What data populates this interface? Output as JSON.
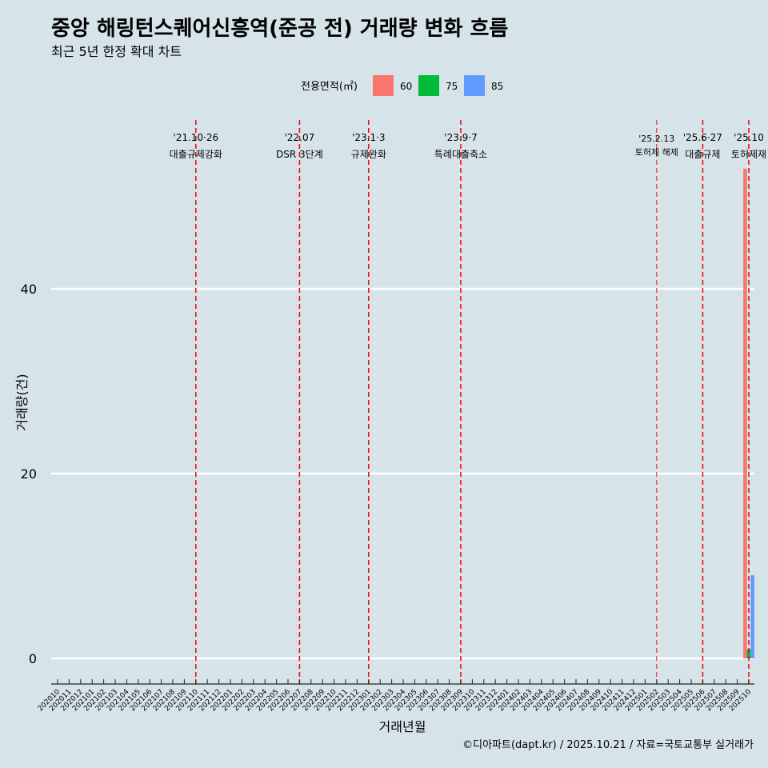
{
  "chart_data": {
    "type": "bar",
    "title": "중앙 해링턴스퀘어신흥역(준공 전) 거래량 변화 흐름",
    "subtitle": "최근 5년 한정 확대 차트",
    "xlabel": "거래년월",
    "ylabel": "거래량(건)",
    "ylim": [
      -4.5,
      56
    ],
    "yticks": [
      0,
      20,
      40
    ],
    "legend": {
      "title": "전용면적(㎡)",
      "entries": [
        {
          "label": "60",
          "color": "#f8766d"
        },
        {
          "label": "75",
          "color": "#00ba38"
        },
        {
          "label": "85",
          "color": "#619cff"
        }
      ]
    },
    "categories": [
      "202010",
      "202011",
      "202012",
      "202101",
      "202102",
      "202103",
      "202104",
      "202105",
      "202106",
      "202107",
      "202108",
      "202109",
      "202110",
      "202111",
      "202112",
      "202201",
      "202202",
      "202203",
      "202204",
      "202205",
      "202206",
      "202207",
      "202208",
      "202209",
      "202210",
      "202211",
      "202212",
      "202301",
      "202302",
      "202303",
      "202304",
      "202305",
      "202306",
      "202307",
      "202308",
      "202309",
      "202310",
      "202311",
      "202312",
      "202401",
      "202402",
      "202403",
      "202404",
      "202405",
      "202406",
      "202407",
      "202408",
      "202409",
      "202410",
      "202411",
      "202412",
      "202501",
      "202502",
      "202503",
      "202504",
      "202505",
      "202506",
      "202507",
      "202508",
      "202509",
      "202510"
    ],
    "series": [
      {
        "name": "60",
        "color": "#f8766d",
        "values": [
          0,
          0,
          0,
          0,
          0,
          0,
          0,
          0,
          0,
          0,
          0,
          0,
          0,
          0,
          0,
          0,
          0,
          0,
          0,
          0,
          0,
          0,
          0,
          0,
          0,
          0,
          0,
          0,
          0,
          0,
          0,
          0,
          0,
          0,
          0,
          0,
          0,
          0,
          0,
          0,
          0,
          0,
          0,
          0,
          0,
          0,
          0,
          0,
          0,
          0,
          0,
          0,
          0,
          0,
          0,
          0,
          0,
          0,
          0,
          0,
          53
        ]
      },
      {
        "name": "75",
        "color": "#00ba38",
        "values": [
          0,
          0,
          0,
          0,
          0,
          0,
          0,
          0,
          0,
          0,
          0,
          0,
          0,
          0,
          0,
          0,
          0,
          0,
          0,
          0,
          0,
          0,
          0,
          0,
          0,
          0,
          0,
          0,
          0,
          0,
          0,
          0,
          0,
          0,
          0,
          0,
          0,
          0,
          0,
          0,
          0,
          0,
          0,
          0,
          0,
          0,
          0,
          0,
          0,
          0,
          0,
          0,
          0,
          0,
          0,
          0,
          0,
          0,
          0,
          0,
          1
        ]
      },
      {
        "name": "85",
        "color": "#619cff",
        "values": [
          0,
          0,
          0,
          0,
          0,
          0,
          0,
          0,
          0,
          0,
          0,
          0,
          0,
          0,
          0,
          0,
          0,
          0,
          0,
          0,
          0,
          0,
          0,
          0,
          0,
          0,
          0,
          0,
          0,
          0,
          0,
          0,
          0,
          0,
          0,
          0,
          0,
          0,
          0,
          0,
          0,
          0,
          0,
          0,
          0,
          0,
          0,
          0,
          0,
          0,
          0,
          0,
          0,
          0,
          0,
          0,
          0,
          0,
          0,
          0,
          9
        ]
      }
    ],
    "annotations": [
      {
        "date": "'21.10·26",
        "label": "대출규제강화",
        "category": "202110",
        "style": "normal"
      },
      {
        "date": "'22.07",
        "label": "DSR 3단계",
        "category": "202207",
        "style": "normal"
      },
      {
        "date": "'23.1·3",
        "label": "규제완화",
        "category": "202301",
        "style": "normal"
      },
      {
        "date": "'23.9·7",
        "label": "특례대출축소",
        "category": "202309",
        "style": "normal"
      },
      {
        "date": "'25.2.13",
        "label": "토허제 해제",
        "category": "202502",
        "style": "small"
      },
      {
        "date": "'25.6·27",
        "label": "대출규제",
        "category": "202506",
        "style": "normal"
      },
      {
        "date": "'25.10",
        "label": "토허제재",
        "category": "202510",
        "style": "normal"
      }
    ],
    "caption": "©디아파트(dapt.kr) / 2025.10.21 / 자료=국토교통부 실거래가"
  }
}
